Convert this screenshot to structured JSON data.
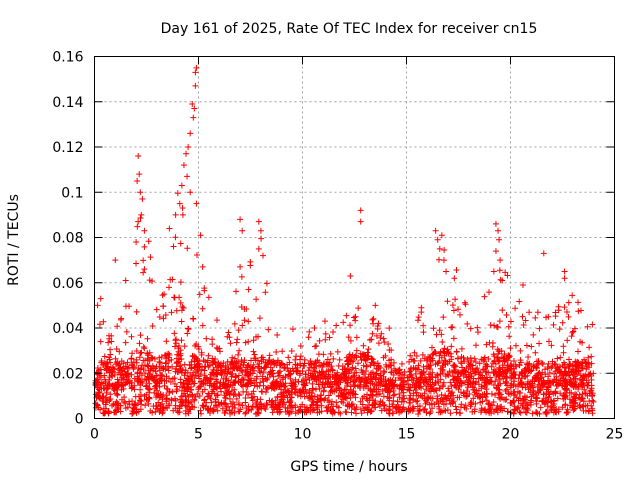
{
  "chart_data": {
    "type": "scatter",
    "title": "Day 161 of 2025, Rate Of TEC Index for receiver cn15",
    "xlabel": "GPS time / hours",
    "ylabel": "ROTI / TECUs",
    "xlim": [
      0,
      25
    ],
    "ylim": [
      0,
      0.16
    ],
    "x_ticks": [
      0,
      5,
      10,
      15,
      20,
      25
    ],
    "x_tick_labels": [
      "0",
      "5",
      "10",
      "15",
      "20",
      "25"
    ],
    "y_ticks": [
      0,
      0.02,
      0.04,
      0.06,
      0.08,
      0.1,
      0.12,
      0.14,
      0.16
    ],
    "y_tick_labels": [
      "0",
      "0.02",
      "0.04",
      "0.06",
      "0.08",
      "0.1",
      "0.12",
      "0.14",
      "0.16"
    ],
    "grid": true,
    "marker": "+",
    "color": "#ff0000",
    "series": [
      {
        "name": "ROTI",
        "profile_x": [
          0,
          0.3,
          1,
          1.9,
          2.2,
          3,
          3.5,
          4,
          4.5,
          4.9,
          5.2,
          6,
          7,
          8,
          9,
          10,
          11,
          12,
          12.6,
          13.5,
          14.5,
          15,
          16,
          16.8,
          17.5,
          18,
          19,
          19.5,
          20,
          21,
          22,
          23,
          24
        ],
        "profile_upper": [
          0.03,
          0.055,
          0.04,
          0.06,
          0.11,
          0.05,
          0.06,
          0.1,
          0.12,
          0.155,
          0.07,
          0.04,
          0.065,
          0.085,
          0.04,
          0.04,
          0.045,
          0.05,
          0.06,
          0.045,
          0.045,
          0.03,
          0.06,
          0.085,
          0.065,
          0.05,
          0.06,
          0.085,
          0.055,
          0.05,
          0.045,
          0.06,
          0.045
        ],
        "profile_typical": [
          0.012,
          0.015,
          0.014,
          0.016,
          0.02,
          0.016,
          0.017,
          0.02,
          0.012,
          0.022,
          0.018,
          0.014,
          0.015,
          0.016,
          0.014,
          0.015,
          0.015,
          0.016,
          0.018,
          0.015,
          0.014,
          0.012,
          0.016,
          0.02,
          0.017,
          0.015,
          0.016,
          0.018,
          0.016,
          0.015,
          0.014,
          0.015,
          0.014
        ],
        "highlights": [
          {
            "x": 2.1,
            "y": 0.116
          },
          {
            "x": 2.15,
            "y": 0.108
          },
          {
            "x": 2.05,
            "y": 0.105
          },
          {
            "x": 2.2,
            "y": 0.1
          },
          {
            "x": 2.3,
            "y": 0.097
          },
          {
            "x": 2.25,
            "y": 0.09
          },
          {
            "x": 2.1,
            "y": 0.087
          },
          {
            "x": 2.4,
            "y": 0.083
          },
          {
            "x": 2.0,
            "y": 0.078
          },
          {
            "x": 1.0,
            "y": 0.07
          },
          {
            "x": 2.4,
            "y": 0.066
          },
          {
            "x": 1.5,
            "y": 0.061
          },
          {
            "x": 3.6,
            "y": 0.084
          },
          {
            "x": 3.9,
            "y": 0.09
          },
          {
            "x": 4.1,
            "y": 0.095
          },
          {
            "x": 4.2,
            "y": 0.103
          },
          {
            "x": 4.3,
            "y": 0.112
          },
          {
            "x": 4.5,
            "y": 0.12
          },
          {
            "x": 4.4,
            "y": 0.117
          },
          {
            "x": 4.6,
            "y": 0.126
          },
          {
            "x": 4.7,
            "y": 0.139
          },
          {
            "x": 4.75,
            "y": 0.133
          },
          {
            "x": 4.8,
            "y": 0.137
          },
          {
            "x": 4.85,
            "y": 0.147
          },
          {
            "x": 4.9,
            "y": 0.155
          },
          {
            "x": 4.85,
            "y": 0.153
          },
          {
            "x": 4.45,
            "y": 0.107
          },
          {
            "x": 4.6,
            "y": 0.1
          },
          {
            "x": 4.25,
            "y": 0.09
          },
          {
            "x": 3.8,
            "y": 0.076
          },
          {
            "x": 4.9,
            "y": 0.095
          },
          {
            "x": 5.1,
            "y": 0.081
          },
          {
            "x": 5.2,
            "y": 0.067
          },
          {
            "x": 7.0,
            "y": 0.088
          },
          {
            "x": 7.1,
            "y": 0.083
          },
          {
            "x": 7.0,
            "y": 0.067
          },
          {
            "x": 7.9,
            "y": 0.087
          },
          {
            "x": 8.0,
            "y": 0.083
          },
          {
            "x": 7.9,
            "y": 0.075
          },
          {
            "x": 8.1,
            "y": 0.072
          },
          {
            "x": 12.3,
            "y": 0.063
          },
          {
            "x": 12.8,
            "y": 0.092
          },
          {
            "x": 12.8,
            "y": 0.087
          },
          {
            "x": 13.5,
            "y": 0.05
          },
          {
            "x": 16.4,
            "y": 0.083
          },
          {
            "x": 16.5,
            "y": 0.079
          },
          {
            "x": 16.7,
            "y": 0.081
          },
          {
            "x": 16.6,
            "y": 0.075
          },
          {
            "x": 16.8,
            "y": 0.07
          },
          {
            "x": 16.9,
            "y": 0.065
          },
          {
            "x": 17.3,
            "y": 0.062
          },
          {
            "x": 19.3,
            "y": 0.086
          },
          {
            "x": 19.4,
            "y": 0.083
          },
          {
            "x": 19.45,
            "y": 0.079
          },
          {
            "x": 19.3,
            "y": 0.074
          },
          {
            "x": 19.5,
            "y": 0.07
          },
          {
            "x": 19.2,
            "y": 0.065
          },
          {
            "x": 19.6,
            "y": 0.061
          },
          {
            "x": 21.6,
            "y": 0.073
          },
          {
            "x": 22.6,
            "y": 0.065
          },
          {
            "x": 22.6,
            "y": 0.062
          },
          {
            "x": 20.6,
            "y": 0.059
          },
          {
            "x": 0.3,
            "y": 0.053
          },
          {
            "x": 0.15,
            "y": 0.05
          }
        ]
      }
    ]
  }
}
